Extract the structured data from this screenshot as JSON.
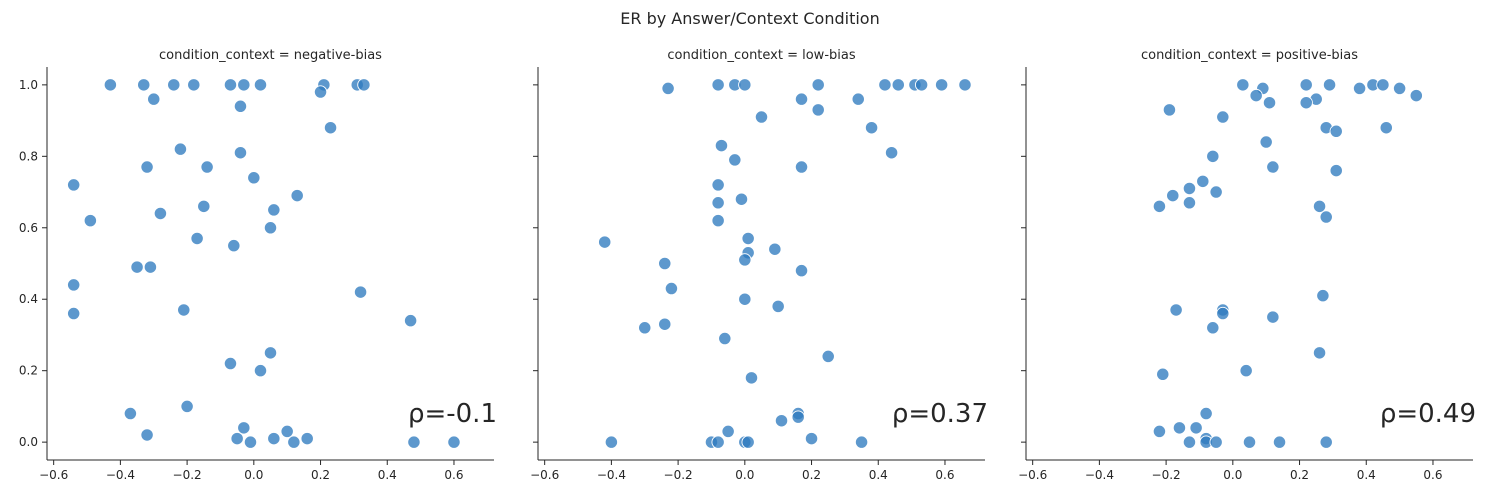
{
  "chart_data": {
    "type": "scatter",
    "title": "ER by Answer/Context Condition",
    "marker_color": "#2f7bbf",
    "xlim": [
      -0.62,
      0.72
    ],
    "ylim": [
      -0.05,
      1.05
    ],
    "xticks": [
      -0.6,
      -0.4,
      -0.2,
      0.0,
      0.2,
      0.4,
      0.6
    ],
    "xtick_labels": [
      "−0.6",
      "−0.4",
      "−0.2",
      "0.0",
      "0.2",
      "0.4",
      "0.6"
    ],
    "yticks": [
      0.0,
      0.2,
      0.4,
      0.6,
      0.8,
      1.0
    ],
    "ytick_labels": [
      "0.0",
      "0.2",
      "0.4",
      "0.6",
      "0.8",
      "1.0"
    ],
    "panels": [
      {
        "title": "condition_context = negative-bias",
        "annotation": "ρ=-0.1",
        "points": [
          [
            -0.43,
            1.0
          ],
          [
            -0.33,
            1.0
          ],
          [
            -0.24,
            1.0
          ],
          [
            -0.18,
            1.0
          ],
          [
            -0.07,
            1.0
          ],
          [
            -0.03,
            1.0
          ],
          [
            0.02,
            1.0
          ],
          [
            0.21,
            1.0
          ],
          [
            0.31,
            1.0
          ],
          [
            0.33,
            1.0
          ],
          [
            0.2,
            0.98
          ],
          [
            -0.3,
            0.96
          ],
          [
            -0.04,
            0.94
          ],
          [
            0.23,
            0.88
          ],
          [
            -0.22,
            0.82
          ],
          [
            -0.04,
            0.81
          ],
          [
            -0.32,
            0.77
          ],
          [
            -0.14,
            0.77
          ],
          [
            0.0,
            0.74
          ],
          [
            -0.54,
            0.72
          ],
          [
            0.13,
            0.69
          ],
          [
            -0.15,
            0.66
          ],
          [
            0.06,
            0.65
          ],
          [
            -0.28,
            0.64
          ],
          [
            -0.49,
            0.62
          ],
          [
            0.05,
            0.6
          ],
          [
            -0.17,
            0.57
          ],
          [
            -0.06,
            0.55
          ],
          [
            -0.31,
            0.49
          ],
          [
            -0.35,
            0.49
          ],
          [
            -0.54,
            0.44
          ],
          [
            0.32,
            0.42
          ],
          [
            -0.21,
            0.37
          ],
          [
            -0.54,
            0.36
          ],
          [
            0.47,
            0.34
          ],
          [
            0.05,
            0.25
          ],
          [
            -0.07,
            0.22
          ],
          [
            0.02,
            0.2
          ],
          [
            -0.2,
            0.1
          ],
          [
            -0.37,
            0.08
          ],
          [
            -0.03,
            0.04
          ],
          [
            0.1,
            0.03
          ],
          [
            -0.32,
            0.02
          ],
          [
            0.06,
            0.01
          ],
          [
            0.16,
            0.01
          ],
          [
            -0.05,
            0.01
          ],
          [
            -0.01,
            0.0
          ],
          [
            0.12,
            0.0
          ],
          [
            0.48,
            0.0
          ],
          [
            0.6,
            0.0
          ]
        ]
      },
      {
        "title": "condition_context = low-bias",
        "annotation": "ρ=0.37",
        "points": [
          [
            -0.08,
            1.0
          ],
          [
            -0.03,
            1.0
          ],
          [
            0.0,
            1.0
          ],
          [
            0.22,
            1.0
          ],
          [
            0.42,
            1.0
          ],
          [
            0.46,
            1.0
          ],
          [
            0.51,
            1.0
          ],
          [
            0.53,
            1.0
          ],
          [
            0.59,
            1.0
          ],
          [
            0.66,
            1.0
          ],
          [
            -0.23,
            0.99
          ],
          [
            0.34,
            0.96
          ],
          [
            0.17,
            0.96
          ],
          [
            0.22,
            0.93
          ],
          [
            0.05,
            0.91
          ],
          [
            0.38,
            0.88
          ],
          [
            -0.07,
            0.83
          ],
          [
            0.44,
            0.81
          ],
          [
            -0.03,
            0.79
          ],
          [
            0.17,
            0.77
          ],
          [
            -0.08,
            0.72
          ],
          [
            -0.01,
            0.68
          ],
          [
            -0.08,
            0.67
          ],
          [
            -0.08,
            0.62
          ],
          [
            0.01,
            0.57
          ],
          [
            -0.42,
            0.56
          ],
          [
            0.09,
            0.54
          ],
          [
            0.01,
            0.53
          ],
          [
            0.0,
            0.51
          ],
          [
            -0.24,
            0.5
          ],
          [
            0.17,
            0.48
          ],
          [
            -0.22,
            0.43
          ],
          [
            0.0,
            0.4
          ],
          [
            0.1,
            0.38
          ],
          [
            -0.24,
            0.33
          ],
          [
            -0.3,
            0.32
          ],
          [
            -0.06,
            0.29
          ],
          [
            0.25,
            0.24
          ],
          [
            0.02,
            0.18
          ],
          [
            0.16,
            0.08
          ],
          [
            0.16,
            0.07
          ],
          [
            0.11,
            0.06
          ],
          [
            -0.05,
            0.03
          ],
          [
            0.2,
            0.01
          ],
          [
            -0.4,
            0.0
          ],
          [
            -0.1,
            0.0
          ],
          [
            -0.08,
            0.0
          ],
          [
            0.0,
            0.0
          ],
          [
            0.01,
            0.0
          ],
          [
            0.35,
            0.0
          ]
        ]
      },
      {
        "title": "condition_context = positive-bias",
        "annotation": "ρ=0.49",
        "points": [
          [
            0.03,
            1.0
          ],
          [
            0.09,
            0.99
          ],
          [
            0.22,
            1.0
          ],
          [
            0.29,
            1.0
          ],
          [
            0.38,
            0.99
          ],
          [
            0.42,
            1.0
          ],
          [
            0.45,
            1.0
          ],
          [
            0.5,
            0.99
          ],
          [
            0.55,
            0.97
          ],
          [
            0.07,
            0.97
          ],
          [
            0.25,
            0.96
          ],
          [
            0.11,
            0.95
          ],
          [
            0.22,
            0.95
          ],
          [
            -0.19,
            0.93
          ],
          [
            -0.03,
            0.91
          ],
          [
            0.46,
            0.88
          ],
          [
            0.28,
            0.88
          ],
          [
            0.31,
            0.87
          ],
          [
            0.1,
            0.84
          ],
          [
            -0.06,
            0.8
          ],
          [
            0.12,
            0.77
          ],
          [
            0.31,
            0.76
          ],
          [
            -0.09,
            0.73
          ],
          [
            -0.13,
            0.71
          ],
          [
            -0.05,
            0.7
          ],
          [
            -0.18,
            0.69
          ],
          [
            -0.13,
            0.67
          ],
          [
            0.26,
            0.66
          ],
          [
            -0.22,
            0.66
          ],
          [
            0.28,
            0.63
          ],
          [
            0.27,
            0.41
          ],
          [
            -0.17,
            0.37
          ],
          [
            -0.03,
            0.37
          ],
          [
            -0.03,
            0.36
          ],
          [
            0.12,
            0.35
          ],
          [
            -0.06,
            0.32
          ],
          [
            0.26,
            0.25
          ],
          [
            0.04,
            0.2
          ],
          [
            -0.21,
            0.19
          ],
          [
            -0.08,
            0.08
          ],
          [
            -0.16,
            0.04
          ],
          [
            -0.11,
            0.04
          ],
          [
            -0.22,
            0.03
          ],
          [
            -0.08,
            0.01
          ],
          [
            -0.13,
            0.0
          ],
          [
            -0.08,
            0.0
          ],
          [
            -0.05,
            0.0
          ],
          [
            0.05,
            0.0
          ],
          [
            0.14,
            0.0
          ],
          [
            0.28,
            0.0
          ]
        ]
      }
    ]
  }
}
